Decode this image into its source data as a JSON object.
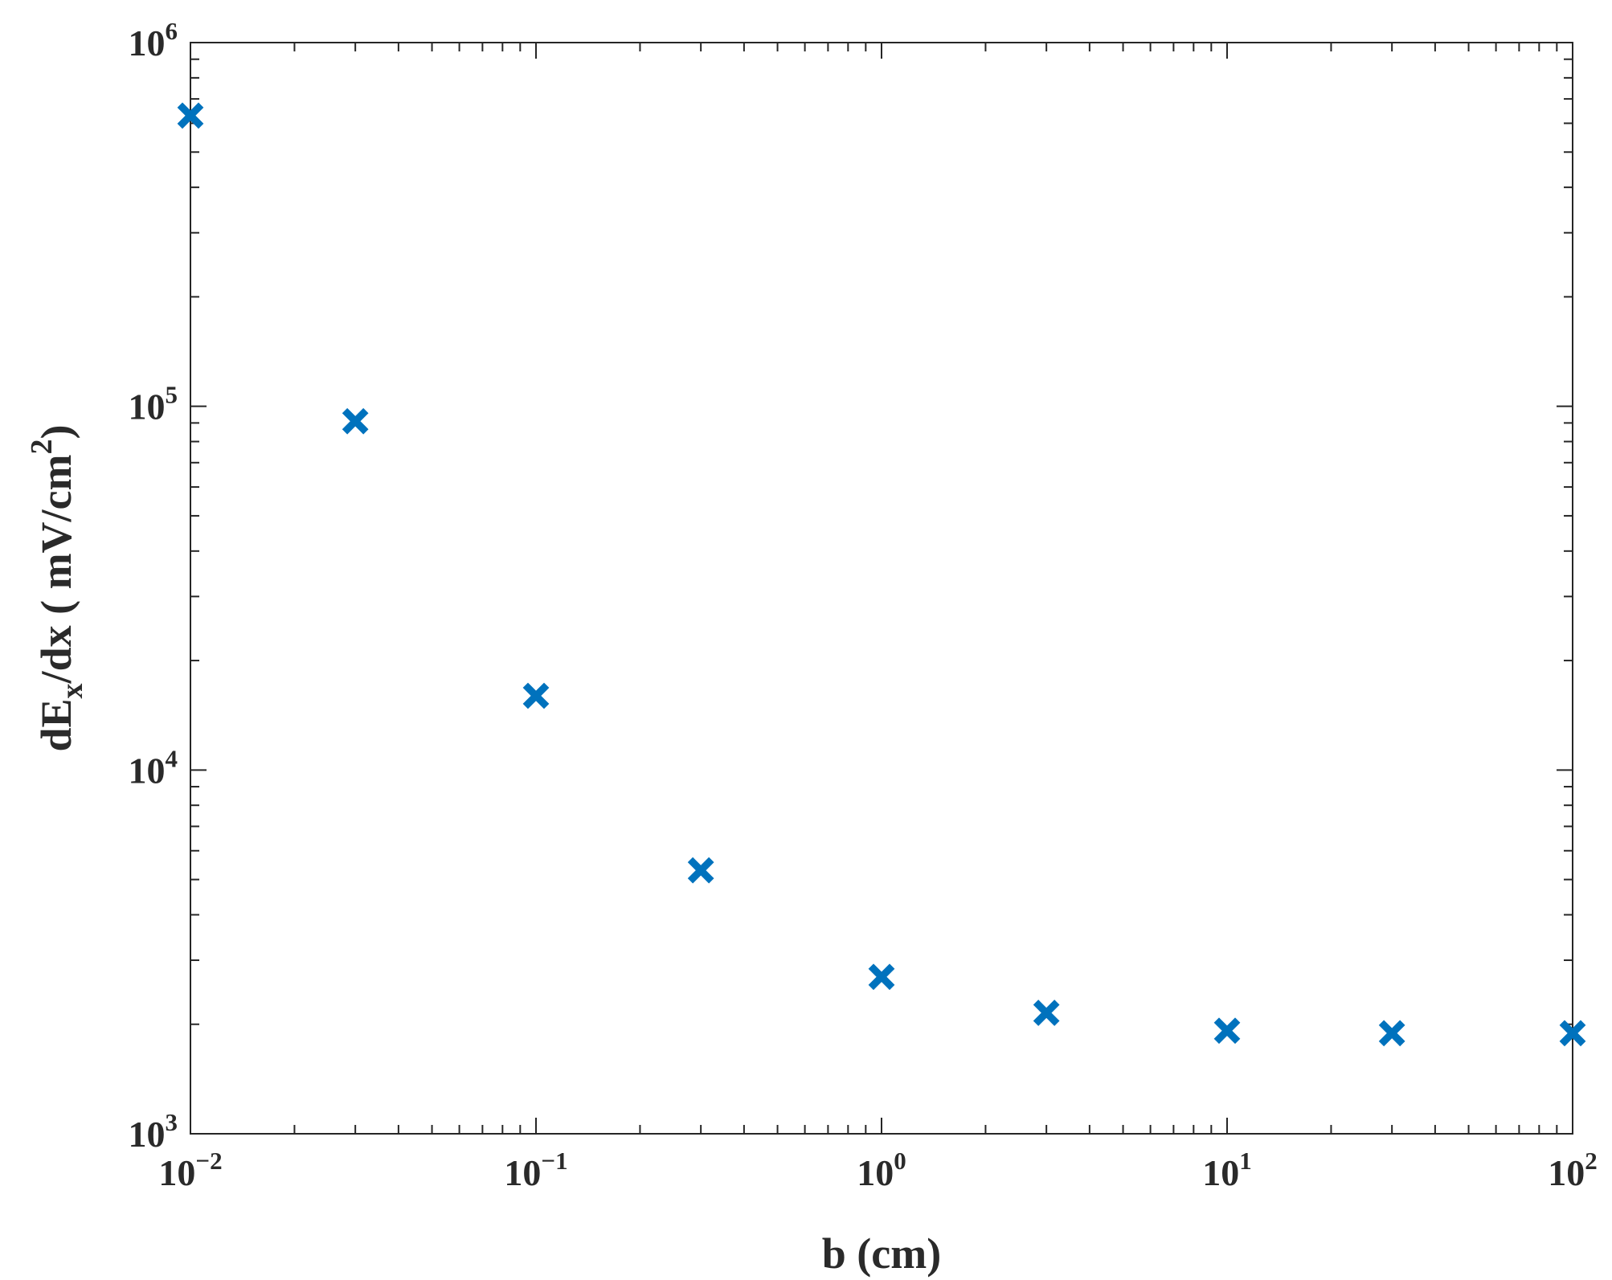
{
  "chart_data": {
    "type": "scatter",
    "xscale": "log",
    "yscale": "log",
    "xlim": [
      0.01,
      100
    ],
    "ylim": [
      1000,
      1000000
    ],
    "grid": false,
    "legend": "none",
    "x_ticks": [
      {
        "value": 0.01,
        "base": "10",
        "exp": "−2"
      },
      {
        "value": 0.1,
        "base": "10",
        "exp": "−1"
      },
      {
        "value": 1,
        "base": "10",
        "exp": "0"
      },
      {
        "value": 10,
        "base": "10",
        "exp": "1"
      },
      {
        "value": 100,
        "base": "10",
        "exp": "2"
      }
    ],
    "y_ticks": [
      {
        "value": 1000,
        "base": "10",
        "exp": "3"
      },
      {
        "value": 10000,
        "base": "10",
        "exp": "4"
      },
      {
        "value": 100000,
        "base": "10",
        "exp": "5"
      },
      {
        "value": 1000000,
        "base": "10",
        "exp": "6"
      }
    ],
    "xlabel": "b (cm)",
    "ylabel": {
      "main": "dE",
      "sub": "x",
      "rest": "/dx ( mV/cm",
      "sup": "2",
      "close": ")"
    },
    "marker": "x-bold",
    "color": "#0072BD",
    "points": [
      {
        "x": 0.01,
        "y": 630000
      },
      {
        "x": 0.03,
        "y": 91000
      },
      {
        "x": 0.1,
        "y": 16000
      },
      {
        "x": 0.3,
        "y": 5300
      },
      {
        "x": 1,
        "y": 2700
      },
      {
        "x": 3,
        "y": 2150
      },
      {
        "x": 10,
        "y": 1920
      },
      {
        "x": 30,
        "y": 1890
      },
      {
        "x": 100,
        "y": 1890
      }
    ]
  }
}
